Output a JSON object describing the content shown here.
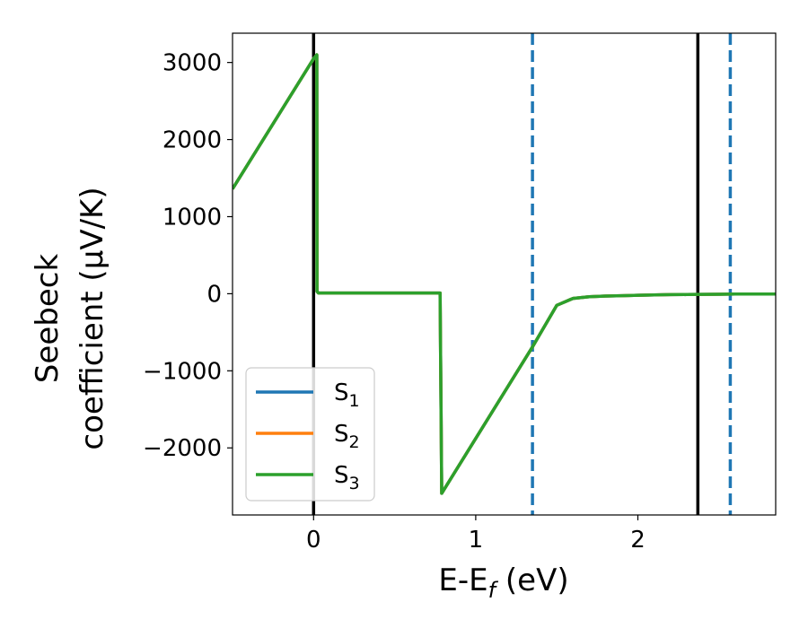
{
  "chart_data": {
    "type": "line",
    "xlabel": "E-E",
    "xlabel_sub": "f",
    "xlabel_unit": " (eV)",
    "ylabel_line1": "Seebeck",
    "ylabel_line2": "coefficient  (μV/K)",
    "xlim": [
      -0.5,
      2.85
    ],
    "ylim": [
      -2870,
      3380
    ],
    "xticks": [
      0,
      1,
      2
    ],
    "yticks": [
      -2000,
      -1000,
      0,
      1000,
      2000,
      3000
    ],
    "xtick_labels": [
      "0",
      "1",
      "2"
    ],
    "ytick_labels": [
      "−2000",
      "−1000",
      "0",
      "1000",
      "2000",
      "3000"
    ],
    "grid": false,
    "legend_placement": "lower-left",
    "series": [
      {
        "name": "S",
        "name_sub": "1",
        "color": "#1f77b4",
        "x": [
          -0.5,
          0.0,
          0.02,
          0.021,
          0.03,
          0.78,
          0.79,
          1.35,
          1.5,
          1.6,
          1.7,
          1.8,
          1.9,
          2.0,
          2.1,
          2.2,
          2.3,
          2.4,
          2.5,
          2.6,
          2.7,
          2.85
        ],
        "y": [
          1360,
          3050,
          3100,
          30,
          10,
          10,
          -2590,
          -690,
          -150,
          -60,
          -40,
          -30,
          -25,
          -20,
          -15,
          -12,
          -10,
          -8,
          -7,
          -5,
          -5,
          -3
        ]
      },
      {
        "name": "S",
        "name_sub": "2",
        "color": "#ff7f0e",
        "x": [
          -0.5,
          0.0,
          0.02,
          0.021,
          0.03,
          0.78,
          0.79,
          1.35,
          1.5,
          1.6,
          1.7,
          1.8,
          1.9,
          2.0,
          2.1,
          2.2,
          2.3,
          2.4,
          2.5,
          2.6,
          2.7,
          2.85
        ],
        "y": [
          1360,
          3050,
          3100,
          30,
          10,
          10,
          -2590,
          -690,
          -150,
          -60,
          -40,
          -30,
          -25,
          -20,
          -15,
          -12,
          -10,
          -8,
          -7,
          -5,
          -5,
          -3
        ]
      },
      {
        "name": "S",
        "name_sub": "3",
        "color": "#2ca02c",
        "x": [
          -0.5,
          0.0,
          0.02,
          0.021,
          0.03,
          0.78,
          0.79,
          1.35,
          1.5,
          1.6,
          1.7,
          1.8,
          1.9,
          2.0,
          2.1,
          2.2,
          2.3,
          2.4,
          2.5,
          2.6,
          2.7,
          2.85
        ],
        "y": [
          1360,
          3050,
          3100,
          30,
          10,
          10,
          -2590,
          -690,
          -150,
          -60,
          -40,
          -30,
          -25,
          -20,
          -15,
          -12,
          -10,
          -8,
          -7,
          -5,
          -5,
          -3
        ]
      }
    ],
    "vlines": [
      {
        "x": 0.0,
        "color": "#000000",
        "style": "solid"
      },
      {
        "x": 2.37,
        "color": "#000000",
        "style": "solid"
      },
      {
        "x": 1.35,
        "color": "#1f77b4",
        "style": "dashed"
      },
      {
        "x": 2.57,
        "color": "#1f77b4",
        "style": "dashed"
      }
    ]
  }
}
